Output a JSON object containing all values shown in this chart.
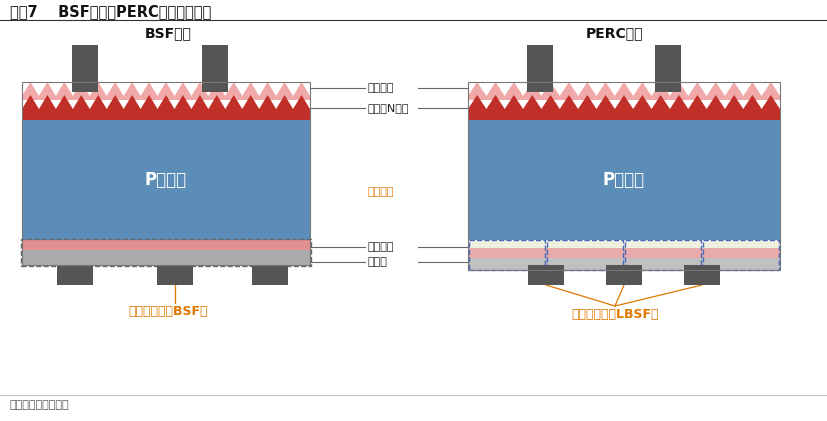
{
  "title": "图表7    BSF电池与PERC电池结构对比",
  "source": "资料来源：平安银行",
  "bsf_title": "BSF电池",
  "perc_title": "PERC电池",
  "bg_color": "#ffffff",
  "label_sihua": "氮化硅膜",
  "label_kuosan": "扩散（N型）",
  "label_yanghua": "氧化铝膜",
  "label_sihua2": "氮化硅膜",
  "label_lv": "铝背场",
  "label_bsf": "面接触结构（BSF）",
  "label_lbsf": "线接触结构（LBSF）",
  "color_sihua": "#f0a8a8",
  "color_kuosan": "#c03028",
  "color_ptype": "#5b8db8",
  "color_bsf_red": "#e09090",
  "color_bsf_gray": "#aaaaaa",
  "color_electrode": "#555555",
  "color_orange": "#e07800",
  "color_gray_bg": "#c0c0c0",
  "color_perc_cream": "#f0f0e0",
  "color_perc_pink": "#e8aaaa",
  "color_label_line": "#666666",
  "color_dashed_bsf": "#666666",
  "color_dashed_perc": "#4466bb"
}
